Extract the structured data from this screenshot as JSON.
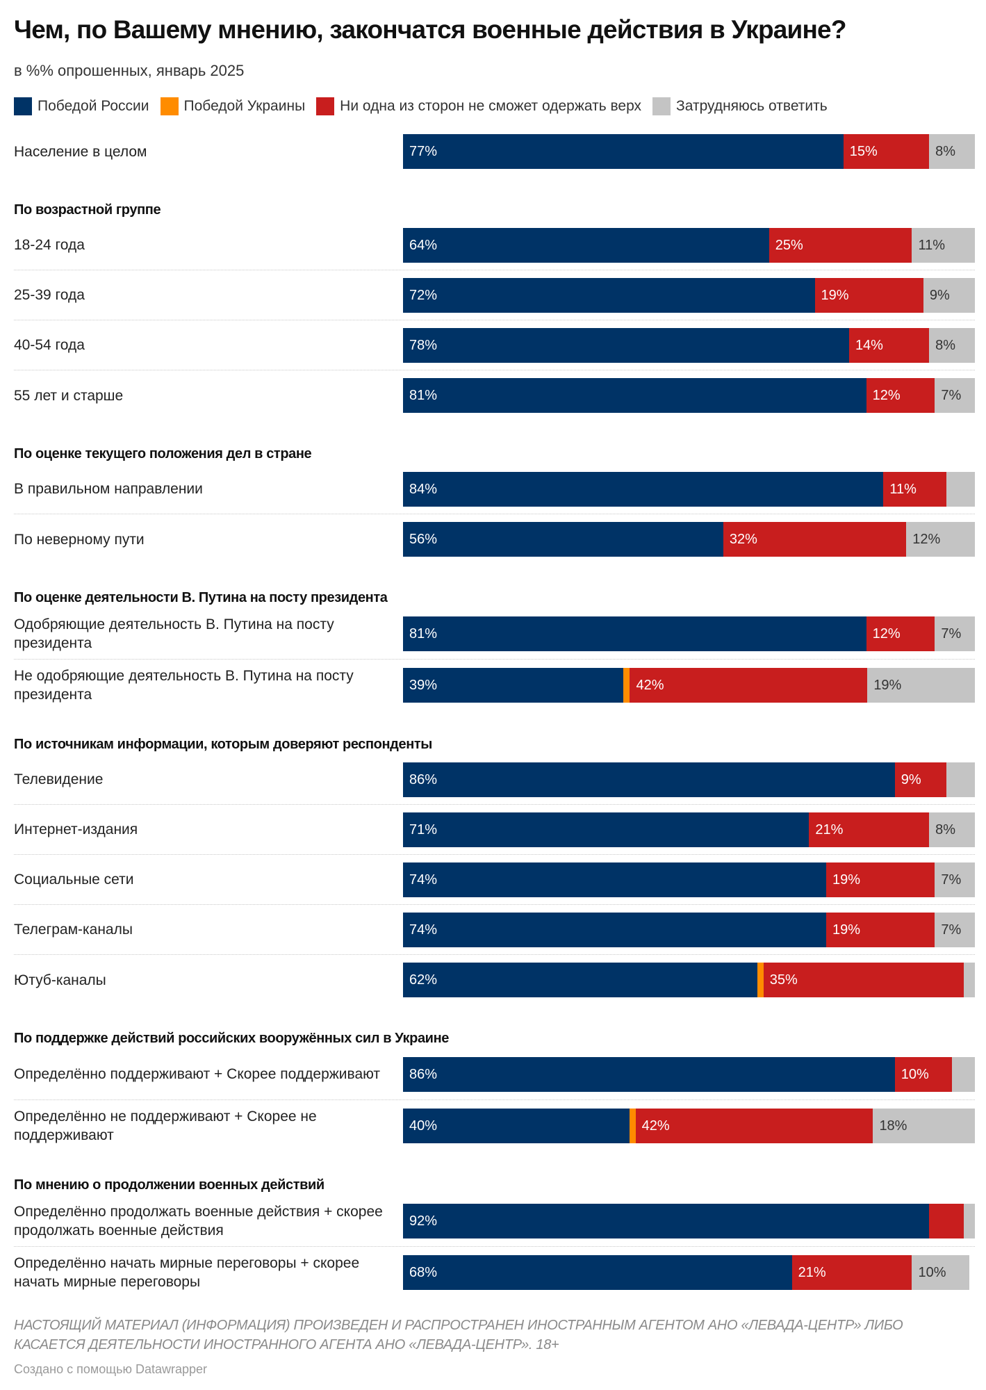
{
  "chart_data": {
    "type": "bar",
    "stacked": true,
    "orientation": "horizontal",
    "title": "Чем, по Вашему мнению, закончатся военные действия в Украине?",
    "subtitle": "в %% опрошенных, январь 2025",
    "legend_position": "top",
    "series": [
      {
        "name": "Победой России",
        "color": "#003366"
      },
      {
        "name": "Победой Украины",
        "color": "#ff8c00"
      },
      {
        "name": "Ни одна из сторон не сможет одержать верх",
        "color": "#c81e1e"
      },
      {
        "name": "Затрудняюсь ответить",
        "color": "#c4c4c4"
      }
    ],
    "groups": [
      {
        "heading": "",
        "rows": [
          {
            "label": "Население в целом",
            "values": [
              77,
              0,
              15,
              8
            ]
          }
        ]
      },
      {
        "heading": "По возрастной группе",
        "rows": [
          {
            "label": "18-24 года",
            "values": [
              64,
              0,
              25,
              11
            ]
          },
          {
            "label": "25-39 года",
            "values": [
              72,
              0,
              19,
              9
            ]
          },
          {
            "label": "40-54 года",
            "values": [
              78,
              0,
              14,
              8
            ]
          },
          {
            "label": "55 лет и старше",
            "values": [
              81,
              0,
              12,
              7
            ]
          }
        ]
      },
      {
        "heading": "По оценке текущего положения дел в стране",
        "rows": [
          {
            "label": "В правильном направлении",
            "values": [
              84,
              0,
              11,
              5
            ]
          },
          {
            "label": "По неверному пути",
            "values": [
              56,
              0,
              32,
              12
            ]
          }
        ]
      },
      {
        "heading": "По оценке деятельности В. Путина на посту президента",
        "tall": true,
        "rows": [
          {
            "label": "Одобряющие деятельность В. Путина на посту президента",
            "values": [
              81,
              0,
              12,
              7
            ]
          },
          {
            "label": "Не одобряющие деятельность В. Путина на посту президента",
            "values": [
              39,
              1,
              42,
              19
            ]
          }
        ]
      },
      {
        "heading": "По источникам информации, которым доверяют респонденты",
        "rows": [
          {
            "label": "Телевидение",
            "values": [
              86,
              0,
              9,
              5
            ]
          },
          {
            "label": "Интернет-издания",
            "values": [
              71,
              0,
              21,
              8
            ]
          },
          {
            "label": "Социальные сети",
            "values": [
              74,
              0,
              19,
              7
            ]
          },
          {
            "label": "Телеграм-каналы",
            "values": [
              74,
              0,
              19,
              7
            ]
          },
          {
            "label": "Ютуб-каналы",
            "values": [
              62,
              1,
              35,
              2
            ]
          }
        ]
      },
      {
        "heading": "По поддержке действий российских вооружённых сил в Украине",
        "tall": true,
        "rows": [
          {
            "label": "Определённо поддерживают + Скорее поддерживают",
            "values": [
              86,
              0,
              10,
              4
            ]
          },
          {
            "label": "Определённо не поддерживают + Скорее не поддерживают",
            "values": [
              40,
              0.4,
              42,
              18
            ]
          }
        ]
      },
      {
        "heading": "По мнению о продолжении военных действий",
        "tall": true,
        "rows": [
          {
            "label": "Определённо продолжать военные действия + скорее продолжать военные действия",
            "values": [
              92,
              0,
              6,
              2
            ]
          },
          {
            "label": "Определённо начать мирные переговоры + скорее начать мирные переговоры",
            "values": [
              68,
              0,
              21,
              10
            ]
          }
        ]
      }
    ]
  },
  "footer": {
    "note": "НАСТОЯЩИЙ МАТЕРИАЛ (ИНФОРМАЦИЯ) ПРОИЗВЕДЕН И РАСПРОСТРАНЕН ИНОСТРАННЫМ АГЕНТОМ АНО «ЛЕВАДА-ЦЕНТР» ЛИБО КАСАЕТСЯ ДЕЯТЕЛЬНОСТИ ИНОСТРАННОГО АГЕНТА АНО «ЛЕВАДА-ЦЕНТР». 18+",
    "credit": "Создано с помощью Datawrapper"
  }
}
